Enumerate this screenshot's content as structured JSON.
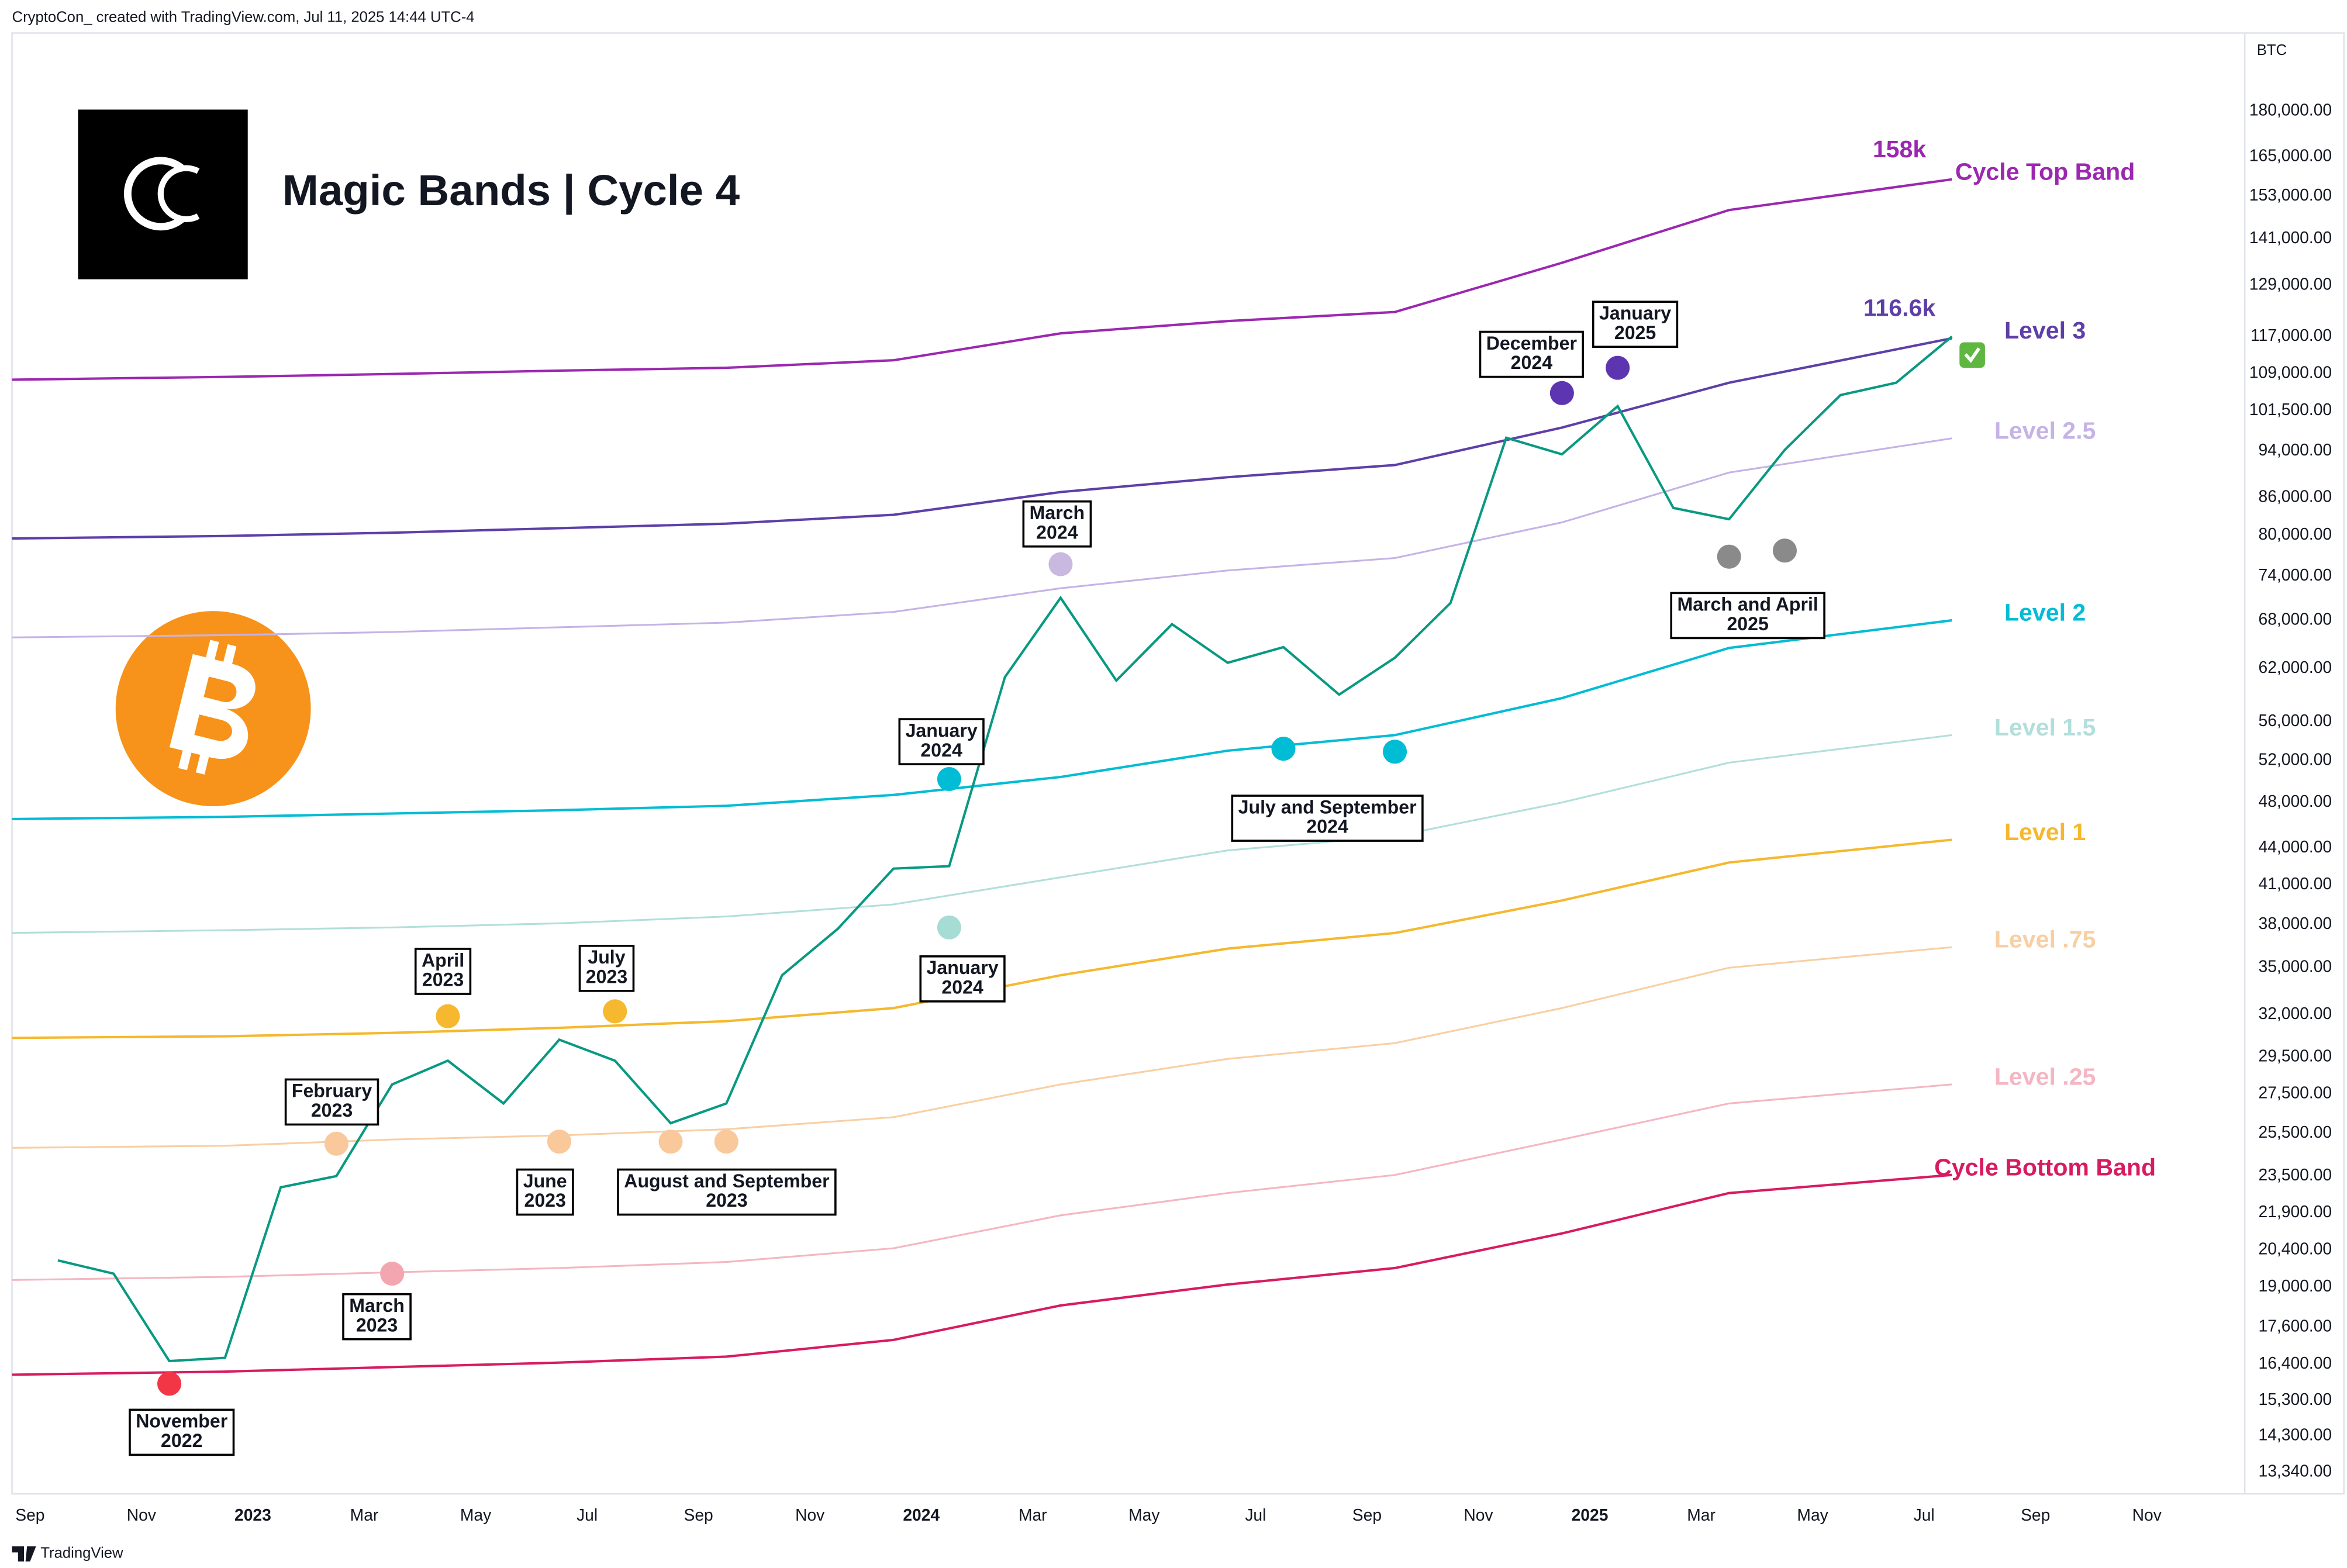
{
  "chart_data": {
    "type": "line",
    "header": "CryptoCon_  created with TradingView.com, Jul 11, 2025 14:44 UTC-4",
    "title": "Magic Bands | Cycle 4",
    "symbol": "BTC",
    "brand": "TradingView",
    "log_scale": true,
    "grid": false,
    "x": [
      "2022-09",
      "2022-10",
      "2022-11",
      "2022-12",
      "2023-01",
      "2023-02",
      "2023-03",
      "2023-04",
      "2023-05",
      "2023-06",
      "2023-07",
      "2023-08",
      "2023-09",
      "2023-10",
      "2023-11",
      "2023-12",
      "2024-01",
      "2024-02",
      "2024-03",
      "2024-04",
      "2024-05",
      "2024-06",
      "2024-07",
      "2024-08",
      "2024-09",
      "2024-10",
      "2024-11",
      "2024-12",
      "2025-01",
      "2025-02",
      "2025-03",
      "2025-04",
      "2025-05",
      "2025-06",
      "2025-07"
    ],
    "values": [
      20000,
      19500,
      16500,
      16600,
      23000,
      23500,
      28000,
      29300,
      27000,
      30500,
      29300,
      26000,
      27000,
      34500,
      37700,
      42300,
      42500,
      61000,
      71000,
      60600,
      67500,
      62700,
      64600,
      59000,
      63300,
      70300,
      96400,
      93400,
      102400,
      84300,
      82500,
      94200,
      104600,
      107100,
      117000
    ],
    "color": "#089981",
    "band_x": [
      "2022-08",
      "2022-12",
      "2023-03",
      "2023-06",
      "2023-09",
      "2023-12",
      "2024-03",
      "2024-06",
      "2024-09",
      "2024-12",
      "2025-03",
      "2025-07"
    ],
    "bands": [
      {
        "name": "Cycle Top Band",
        "color": "#9c27b0",
        "end_label": "158k",
        "values": [
          107700,
          108300,
          108900,
          109600,
          110200,
          111800,
          117700,
          120500,
          122600,
          134700,
          149000,
          158000
        ]
      },
      {
        "name": "Level 3",
        "color": "#5e3fa8",
        "end_label": "116.6k",
        "values": [
          79500,
          79900,
          80400,
          81100,
          81800,
          83200,
          86900,
          89400,
          91500,
          98300,
          107100,
          116600
        ]
      },
      {
        "name": "Level 2.5",
        "color": "#c5b3e6",
        "values": [
          65800,
          66100,
          66500,
          67100,
          67700,
          69100,
          72300,
          74800,
          76600,
          82000,
          90200,
          96300
        ]
      },
      {
        "name": "Level 2",
        "color": "#00bcd4",
        "values": [
          46500,
          46700,
          47000,
          47300,
          47700,
          48700,
          50400,
          53000,
          54600,
          58600,
          64500,
          68000
        ]
      },
      {
        "name": "Level 1.5",
        "color": "#b2dfdb",
        "values": [
          37400,
          37600,
          37800,
          38100,
          38600,
          39500,
          41600,
          43800,
          45000,
          48000,
          51800,
          54600
        ]
      },
      {
        "name": "Level 1",
        "color": "#f5b82e",
        "values": [
          30600,
          30700,
          30900,
          31200,
          31600,
          32400,
          34500,
          36300,
          37400,
          39800,
          42800,
          44700
        ]
      },
      {
        "name": "Level .75",
        "color": "#f8cfa3",
        "values": [
          24800,
          24900,
          25200,
          25400,
          25700,
          26300,
          28000,
          29400,
          30300,
          32400,
          35000,
          36400
        ]
      },
      {
        "name": "Level .25",
        "color": "#f4b6c2",
        "values": [
          19260,
          19380,
          19550,
          19710,
          19940,
          20470,
          21800,
          22750,
          23550,
          25200,
          27000,
          28000
        ]
      },
      {
        "name": "Cycle Bottom Band",
        "color": "#d81b60",
        "values": [
          16070,
          16170,
          16310,
          16450,
          16640,
          17180,
          18350,
          19100,
          19710,
          21060,
          22750,
          23550
        ]
      }
    ],
    "annotations": [
      {
        "text": [
          "November",
          "2022"
        ],
        "color": "#f23645",
        "points": [
          {
            "x": "2022-11",
            "y": 15800
          }
        ]
      },
      {
        "text": [
          "February",
          "2023"
        ],
        "color": "#f9c89b",
        "points": [
          {
            "x": "2023-02",
            "y": 25000
          }
        ]
      },
      {
        "text": [
          "March",
          "2023"
        ],
        "color": "#f4a6b0",
        "points": [
          {
            "x": "2023-03",
            "y": 19500
          }
        ]
      },
      {
        "text": [
          "April",
          "2023"
        ],
        "color": "#f5b82e",
        "points": [
          {
            "x": "2023-04",
            "y": 31900
          }
        ]
      },
      {
        "text": [
          "June",
          "2023"
        ],
        "color": "#f9c89b",
        "points": [
          {
            "x": "2023-06",
            "y": 25100
          }
        ]
      },
      {
        "text": [
          "July",
          "2023"
        ],
        "color": "#f5b82e",
        "points": [
          {
            "x": "2023-07",
            "y": 32200
          }
        ]
      },
      {
        "text": [
          "August and September",
          "2023"
        ],
        "color": "#f9c89b",
        "points": [
          {
            "x": "2023-08",
            "y": 25100
          },
          {
            "x": "2023-09",
            "y": 25100
          }
        ]
      },
      {
        "text": [
          "January",
          "2024"
        ],
        "color": "#00bcd4",
        "points": [
          {
            "x": "2024-01",
            "y": 50200
          }
        ]
      },
      {
        "text": [
          "January",
          "2024"
        ],
        "color": "#a6dcd3",
        "points": [
          {
            "x": "2024-01",
            "y": 37800
          }
        ]
      },
      {
        "text": [
          "March",
          "2024"
        ],
        "color": "#c9b8e0",
        "points": [
          {
            "x": "2024-03",
            "y": 75700
          }
        ]
      },
      {
        "text": [
          "July and September",
          "2024"
        ],
        "color": "#00bcd4",
        "points": [
          {
            "x": "2024-07",
            "y": 53200
          },
          {
            "x": "2024-09",
            "y": 52900
          }
        ]
      },
      {
        "text": [
          "December",
          "2024"
        ],
        "color": "#5e35b1",
        "points": [
          {
            "x": "2024-12",
            "y": 105000
          }
        ]
      },
      {
        "text": [
          "January",
          "2025"
        ],
        "color": "#5e35b1",
        "points": [
          {
            "x": "2025-01",
            "y": 110200
          }
        ]
      },
      {
        "text": [
          "March and April",
          "2025"
        ],
        "color": "#8a8a8a",
        "points": [
          {
            "x": "2025-03",
            "y": 76800
          },
          {
            "x": "2025-04",
            "y": 77700
          }
        ]
      }
    ],
    "xlim": [
      "2022-08",
      "2025-12"
    ],
    "xticks": [
      {
        "value": "2022-09",
        "label": "Sep"
      },
      {
        "value": "2022-11",
        "label": "Nov"
      },
      {
        "value": "2023-01",
        "label": "2023"
      },
      {
        "value": "2023-03",
        "label": "Mar"
      },
      {
        "value": "2023-05",
        "label": "May"
      },
      {
        "value": "2023-07",
        "label": "Jul"
      },
      {
        "value": "2023-09",
        "label": "Sep"
      },
      {
        "value": "2023-11",
        "label": "Nov"
      },
      {
        "value": "2024-01",
        "label": "2024"
      },
      {
        "value": "2024-03",
        "label": "Mar"
      },
      {
        "value": "2024-05",
        "label": "May"
      },
      {
        "value": "2024-07",
        "label": "Jul"
      },
      {
        "value": "2024-09",
        "label": "Sep"
      },
      {
        "value": "2024-11",
        "label": "Nov"
      },
      {
        "value": "2025-01",
        "label": "2025"
      },
      {
        "value": "2025-03",
        "label": "Mar"
      },
      {
        "value": "2025-05",
        "label": "May"
      },
      {
        "value": "2025-07",
        "label": "Jul"
      },
      {
        "value": "2025-09",
        "label": "Sep"
      },
      {
        "value": "2025-11",
        "label": "Nov"
      }
    ],
    "ylim": [
      12800,
      209000
    ],
    "yticks": [
      {
        "value": 13340,
        "label": "13,340.00"
      },
      {
        "value": 14300,
        "label": "14,300.00"
      },
      {
        "value": 15300,
        "label": "15,300.00"
      },
      {
        "value": 16400,
        "label": "16,400.00"
      },
      {
        "value": 17600,
        "label": "17,600.00"
      },
      {
        "value": 19000,
        "label": "19,000.00"
      },
      {
        "value": 20400,
        "label": "20,400.00"
      },
      {
        "value": 21900,
        "label": "21,900.00"
      },
      {
        "value": 23500,
        "label": "23,500.00"
      },
      {
        "value": 25500,
        "label": "25,500.00"
      },
      {
        "value": 27500,
        "label": "27,500.00"
      },
      {
        "value": 29500,
        "label": "29,500.00"
      },
      {
        "value": 32000,
        "label": "32,000.00"
      },
      {
        "value": 35000,
        "label": "35,000.00"
      },
      {
        "value": 38000,
        "label": "38,000.00"
      },
      {
        "value": 41000,
        "label": "41,000.00"
      },
      {
        "value": 44000,
        "label": "44,000.00"
      },
      {
        "value": 48000,
        "label": "48,000.00"
      },
      {
        "value": 52000,
        "label": "52,000.00"
      },
      {
        "value": 56000,
        "label": "56,000.00"
      },
      {
        "value": 62000,
        "label": "62,000.00"
      },
      {
        "value": 68000,
        "label": "68,000.00"
      },
      {
        "value": 74000,
        "label": "74,000.00"
      },
      {
        "value": 80000,
        "label": "80,000.00"
      },
      {
        "value": 86000,
        "label": "86,000.00"
      },
      {
        "value": 94000,
        "label": "94,000.00"
      },
      {
        "value": 101500,
        "label": "101,500.00"
      },
      {
        "value": 109000,
        "label": "109,000.00"
      },
      {
        "value": 117000,
        "label": "117,000.00"
      },
      {
        "value": 129000,
        "label": "129,000.00"
      },
      {
        "value": 141000,
        "label": "141,000.00"
      },
      {
        "value": 153000,
        "label": "153,000.00"
      },
      {
        "value": 165000,
        "label": "165,000.00"
      },
      {
        "value": 180000,
        "label": "180,000.00"
      }
    ]
  }
}
